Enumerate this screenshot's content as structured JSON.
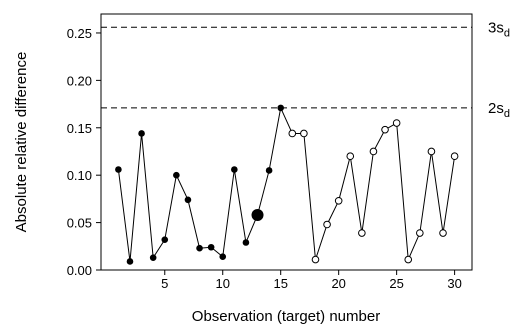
{
  "chart_data": {
    "type": "scatter",
    "title": "",
    "xlabel": "Observation (target) number",
    "ylabel": "Absolute relative difference",
    "xlim": [
      -0.5,
      31.5
    ],
    "ylim": [
      0.0,
      0.27
    ],
    "x_ticks": [
      5,
      10,
      15,
      20,
      25,
      30
    ],
    "x_tick_labels": [
      "5",
      "10",
      "15",
      "20",
      "25",
      "30"
    ],
    "y_ticks": [
      0.0,
      0.05,
      0.1,
      0.15,
      0.2,
      0.25
    ],
    "y_tick_labels": [
      "0.00",
      "0.05",
      "0.10",
      "0.15",
      "0.20",
      "0.25"
    ],
    "grid": false,
    "legend": "none",
    "reference_lines": [
      {
        "value": 0.256,
        "label_main": "3s",
        "label_sub": "d",
        "style": "dashed"
      },
      {
        "value": 0.171,
        "label_main": "2s",
        "label_sub": "d",
        "style": "dashed"
      }
    ],
    "series": [
      {
        "marker": "filled",
        "x": [
          1,
          2,
          3,
          4,
          5,
          6,
          7,
          8,
          9,
          10,
          11,
          12,
          14,
          15
        ],
        "y": [
          0.106,
          0.009,
          0.144,
          0.013,
          0.032,
          0.1,
          0.074,
          0.023,
          0.024,
          0.014,
          0.106,
          0.029,
          0.105,
          0.171
        ]
      },
      {
        "marker": "large-filled",
        "x": [
          13
        ],
        "y": [
          0.058
        ]
      },
      {
        "marker": "open",
        "x": [
          16,
          17,
          18,
          19,
          20,
          21,
          22,
          23,
          24,
          25,
          26,
          27,
          28,
          29,
          30
        ],
        "y": [
          0.144,
          0.144,
          0.011,
          0.048,
          0.073,
          0.12,
          0.039,
          0.125,
          0.148,
          0.155,
          0.011,
          0.039,
          0.125,
          0.039,
          0.12
        ]
      }
    ],
    "colors": {
      "marker": "#000000",
      "line": "#000000",
      "open_fill": "#ffffff"
    }
  }
}
